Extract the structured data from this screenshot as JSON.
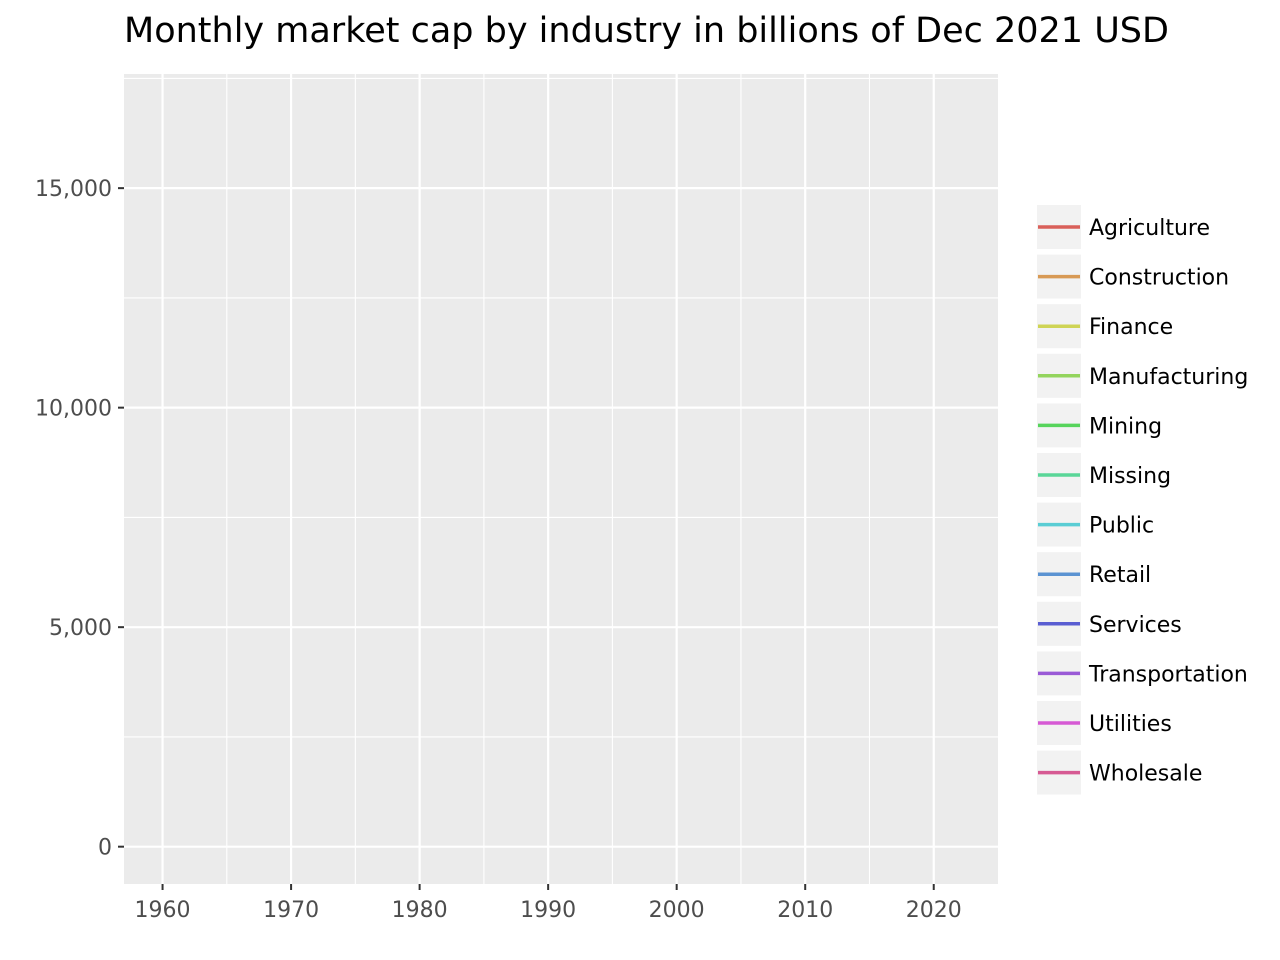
{
  "chart_data": {
    "type": "line",
    "title": "Monthly market cap by industry in billions of Dec 2021 USD",
    "xlabel": "",
    "ylabel": "",
    "x_ticks": [
      1960,
      1970,
      1980,
      1990,
      2000,
      2010,
      2020
    ],
    "x_tick_labels": [
      "1960",
      "1970",
      "1980",
      "1990",
      "2000",
      "2010",
      "2020"
    ],
    "xlim": [
      1957,
      2025
    ],
    "y_ticks": [
      0,
      5000,
      10000,
      15000
    ],
    "y_tick_labels": [
      "0",
      "5,000",
      "10,000",
      "15,000"
    ],
    "ylim": [
      -850,
      17600
    ],
    "grid": true,
    "legend_position": "right",
    "series": [
      {
        "name": "Agriculture",
        "color": "#d9605a",
        "values": []
      },
      {
        "name": "Construction",
        "color": "#d89a55",
        "values": []
      },
      {
        "name": "Finance",
        "color": "#cfd455",
        "values": []
      },
      {
        "name": "Manufacturing",
        "color": "#93d45d",
        "values": []
      },
      {
        "name": "Mining",
        "color": "#57d45c",
        "values": []
      },
      {
        "name": "Missing",
        "color": "#5ad698",
        "values": []
      },
      {
        "name": "Public",
        "color": "#5acdd4",
        "values": []
      },
      {
        "name": "Retail",
        "color": "#5b93d2",
        "values": []
      },
      {
        "name": "Services",
        "color": "#5a5ed2",
        "values": []
      },
      {
        "name": "Transportation",
        "color": "#9a5ad6",
        "values": []
      },
      {
        "name": "Utilities",
        "color": "#d65ad4",
        "values": []
      },
      {
        "name": "Wholesale",
        "color": "#d65a93",
        "values": []
      }
    ]
  }
}
